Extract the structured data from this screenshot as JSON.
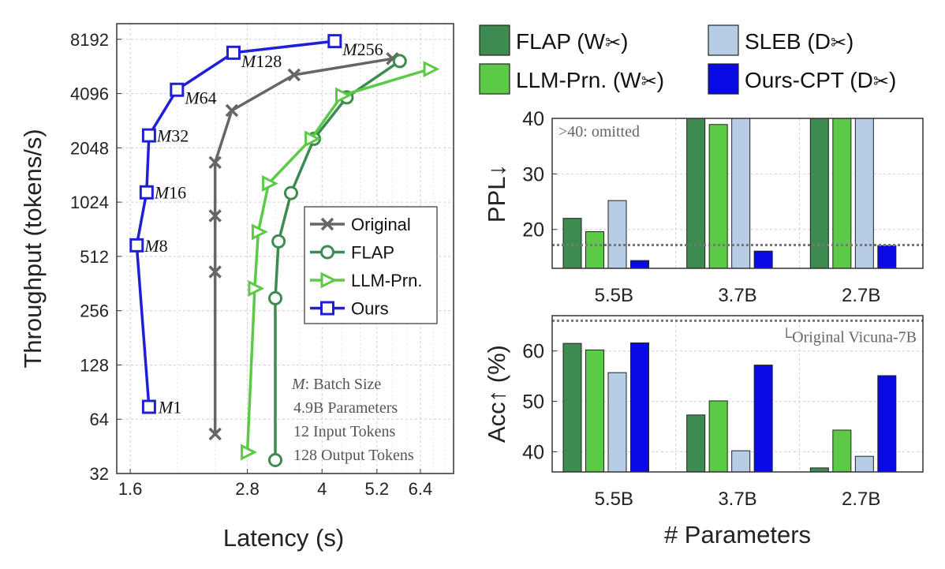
{
  "chart_data": [
    {
      "id": "latency-throughput",
      "type": "line",
      "xlabel": "Latency (s)",
      "ylabel": "Throughput (tokens/s)",
      "xscale": "log",
      "yscale": "log2",
      "xlim": [
        1.5,
        7.5
      ],
      "ylim": [
        32,
        10000
      ],
      "xticks": [
        1.6,
        2.8,
        4,
        5.2,
        6.4
      ],
      "xtick_labels": [
        "1.6",
        "2.8",
        "4",
        "5.2",
        "6.4"
      ],
      "yticks": [
        32,
        64,
        128,
        256,
        512,
        1024,
        2048,
        4096,
        8192
      ],
      "ytick_labels": [
        "32",
        "64",
        "128",
        "256",
        "512",
        "1024",
        "2048",
        "4096",
        "8192"
      ],
      "grid": true,
      "legend_position": "center-right",
      "series": [
        {
          "name": "Original",
          "color": "#666666",
          "marker": "x",
          "points": [
            [
              2.4,
              53
            ],
            [
              2.4,
              420
            ],
            [
              2.4,
              860
            ],
            [
              2.4,
              1700
            ],
            [
              2.6,
              3300
            ],
            [
              3.5,
              5200
            ],
            [
              5.6,
              6400
            ]
          ]
        },
        {
          "name": "FLAP",
          "color": "#3d8b50",
          "marker": "circle",
          "points": [
            [
              3.2,
              38
            ],
            [
              3.2,
              300
            ],
            [
              3.25,
              620
            ],
            [
              3.45,
              1150
            ],
            [
              3.85,
              2300
            ],
            [
              4.5,
              3900
            ],
            [
              5.8,
              6200
            ]
          ]
        },
        {
          "name": "LLM-Prn.",
          "color": "#5cc947",
          "marker": "triangle-right",
          "points": [
            [
              2.8,
              42
            ],
            [
              2.9,
              340
            ],
            [
              2.95,
              700
            ],
            [
              3.1,
              1300
            ],
            [
              3.8,
              2300
            ],
            [
              4.4,
              4000
            ],
            [
              6.7,
              5600
            ]
          ]
        },
        {
          "name": "Ours",
          "color": "#1f1fd8",
          "marker": "square",
          "points": [
            [
              1.75,
              75
            ],
            [
              1.65,
              590
            ],
            [
              1.73,
              1160
            ],
            [
              1.75,
              2400
            ],
            [
              2.0,
              4300
            ],
            [
              2.62,
              6900
            ],
            [
              4.25,
              8000
            ]
          ]
        }
      ],
      "point_labels": [
        {
          "m": "M",
          "num": "1"
        },
        {
          "m": "M",
          "num": "8"
        },
        {
          "m": "M",
          "num": "16"
        },
        {
          "m": "M",
          "num": "32"
        },
        {
          "m": "M",
          "num": "64"
        },
        {
          "m": "M",
          "num": "128"
        },
        {
          "m": "M",
          "num": "256"
        }
      ],
      "annotation": {
        "m": "M",
        "line1": ": Batch Size",
        "line2": "4.9B Parameters",
        "line3": "12 Input Tokens",
        "line4": "128 Output Tokens"
      }
    },
    {
      "id": "ppl",
      "type": "bar",
      "ylabel": "PPL↓",
      "categories": [
        "5.5B",
        "3.7B",
        "2.7B"
      ],
      "ylim": [
        13,
        40
      ],
      "yticks": [
        20,
        30,
        40
      ],
      "ytick_labels": [
        "20",
        "30",
        "40"
      ],
      "series": [
        {
          "name": "FLAP (W✂)",
          "values": [
            22.0,
            40,
            40
          ]
        },
        {
          "name": "LLM-Prn. (W✂)",
          "values": [
            19.6,
            38.9,
            40
          ]
        },
        {
          "name": "SLEB (D✂)",
          "values": [
            25.2,
            40,
            40
          ]
        },
        {
          "name": "Ours-CPT (D✂)",
          "values": [
            14.4,
            16.1,
            17.1
          ]
        }
      ],
      "reference_value": 17.2,
      "annotation": ">40: omitted"
    },
    {
      "id": "acc",
      "type": "bar",
      "ylabel": "Acc↑ (%)",
      "xlabel": "# Parameters",
      "categories": [
        "5.5B",
        "3.7B",
        "2.7B"
      ],
      "ylim": [
        36,
        67
      ],
      "yticks": [
        40,
        50,
        60
      ],
      "ytick_labels": [
        "40",
        "50",
        "60"
      ],
      "series": [
        {
          "name": "FLAP (W✂)",
          "values": [
            61.5,
            47.3,
            36.8
          ]
        },
        {
          "name": "LLM-Prn. (W✂)",
          "values": [
            60.2,
            50.1,
            44.3
          ]
        },
        {
          "name": "SLEB (D✂)",
          "values": [
            55.7,
            40.2,
            39.1
          ]
        },
        {
          "name": "Ours-CPT (D✂)",
          "values": [
            61.6,
            57.2,
            55.1
          ]
        }
      ],
      "reference_value": 66.0,
      "reference_label": "└Original Vicuna-7B"
    }
  ],
  "bar_legend": [
    {
      "name": "FLAP (W✂)",
      "color": "#3d8b50",
      "text": "FLAP (W",
      "glyph": "✂",
      "suffix": ")"
    },
    {
      "name": "SLEB (D✂)",
      "color": "#b7cde6",
      "text": "SLEB (D",
      "glyph": "✂",
      "suffix": ")"
    },
    {
      "name": "LLM-Prn. (W✂)",
      "color": "#5cc947",
      "text": "LLM-Prn. (W",
      "glyph": "✂",
      "suffix": ")"
    },
    {
      "name": "Ours-CPT (D✂)",
      "color": "#0a0ae6",
      "text": "Ours-CPT (D",
      "glyph": "✂",
      "suffix": ")"
    }
  ],
  "colors": {
    "flap": "#3d8b50",
    "llmprn": "#5cc947",
    "sleb": "#b7cde6",
    "ours": "#0a0ae6",
    "original": "#666666",
    "ours_line": "#1f1fd8"
  }
}
